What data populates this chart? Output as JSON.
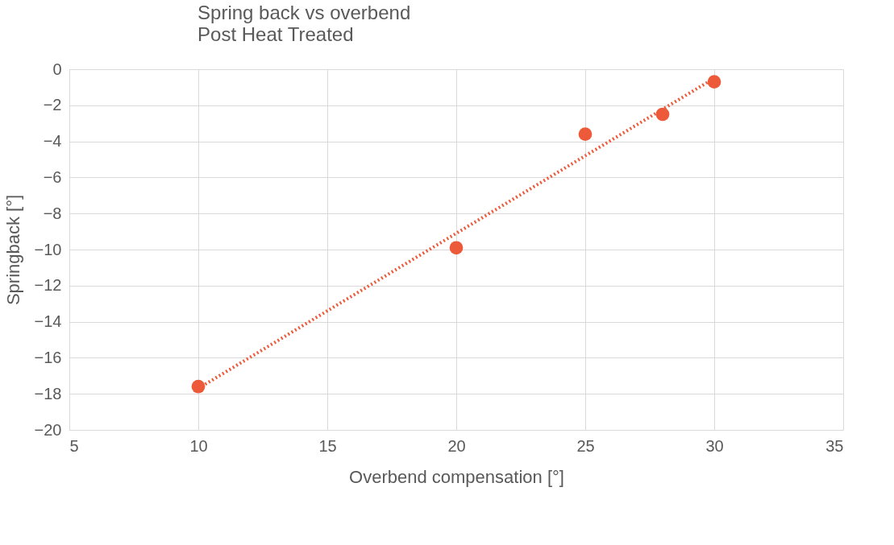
{
  "chart_data": {
    "type": "scatter",
    "title": "Spring back vs overbend",
    "subtitle": "Post Heat Treated",
    "xlabel": "Overbend compensation [°]",
    "ylabel": "Springback [°]",
    "series": [
      {
        "type": "scatter",
        "color": "#ed5a3a",
        "x": [
          10,
          20,
          25,
          28,
          30
        ],
        "values": [
          -17.6,
          -9.9,
          -3.6,
          -2.5,
          -0.7
        ],
        "marker": "circle"
      },
      {
        "type": "line",
        "color": "#ed5a3a",
        "x": [
          10,
          30
        ],
        "values": [
          -17.7,
          -0.5
        ],
        "line_style": "dotted",
        "marker": "none"
      }
    ],
    "xlim": [
      5,
      35
    ],
    "xticks": [
      5,
      10,
      15,
      20,
      25,
      30,
      35
    ],
    "ylim": [
      -20,
      0
    ],
    "yticks": [
      -20,
      -18,
      -16,
      -14,
      -12,
      -10,
      -8,
      -6,
      -4,
      -2,
      0
    ],
    "grid": true
  }
}
